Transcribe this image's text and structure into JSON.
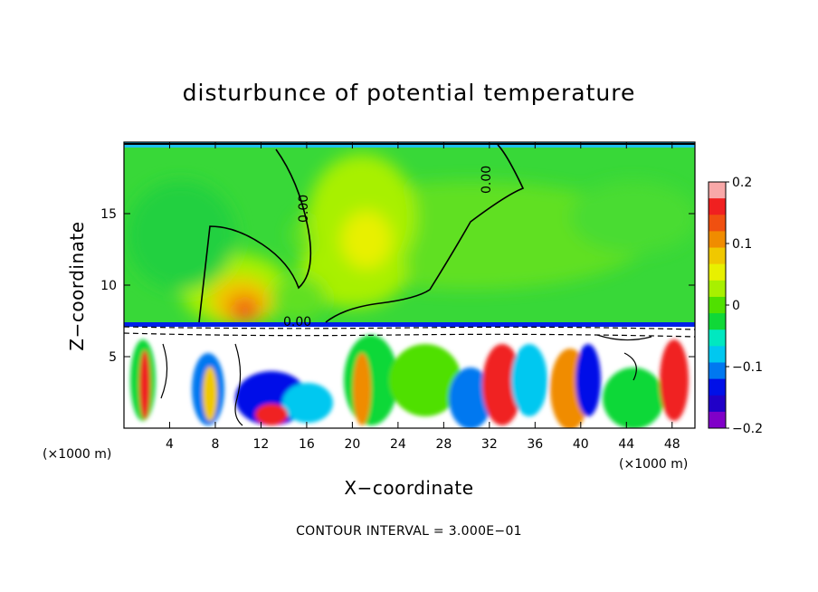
{
  "chart_data": {
    "type": "heatmap",
    "title": "disturbunce of potential temperature",
    "xlabel": "X−coordinate",
    "ylabel": "Z−coordinate",
    "x_unit": "(×1000 m)",
    "z_unit": "(×1000 m)",
    "xlim": [
      0,
      50
    ],
    "ylim": [
      0,
      20
    ],
    "x_ticks": [
      4,
      8,
      12,
      16,
      20,
      24,
      28,
      32,
      36,
      40,
      44,
      48
    ],
    "y_ticks": [
      5,
      10,
      15
    ],
    "colorbar": {
      "range": [
        -0.2,
        0.2
      ],
      "ticks": [
        "0.2",
        "0.1",
        "0",
        "−0.1",
        "−0.2"
      ],
      "tick_values": [
        0.2,
        0.1,
        0,
        -0.1,
        -0.2
      ],
      "colors": [
        "#f8a8a8",
        "#f02020",
        "#f05010",
        "#f08c00",
        "#f0c800",
        "#e8f000",
        "#a8f000",
        "#50e000",
        "#10d838",
        "#00e8c0",
        "#00c8f0",
        "#0078f0",
        "#0010e8",
        "#2000c8",
        "#8000c8"
      ]
    },
    "contour_interval_text": "CONTOUR INTERVAL = 3.000E−01",
    "contour_labels": [
      "0.00",
      "0.00",
      "0.00"
    ],
    "features": [
      {
        "kind": "warm_anomaly",
        "x": 11,
        "z": 8.5,
        "value": 0.12
      },
      {
        "kind": "warm_anomaly",
        "x": 22,
        "z": 13.2,
        "value": 0.05
      },
      {
        "kind": "mixed_layer",
        "z_top": 7.0
      }
    ]
  }
}
